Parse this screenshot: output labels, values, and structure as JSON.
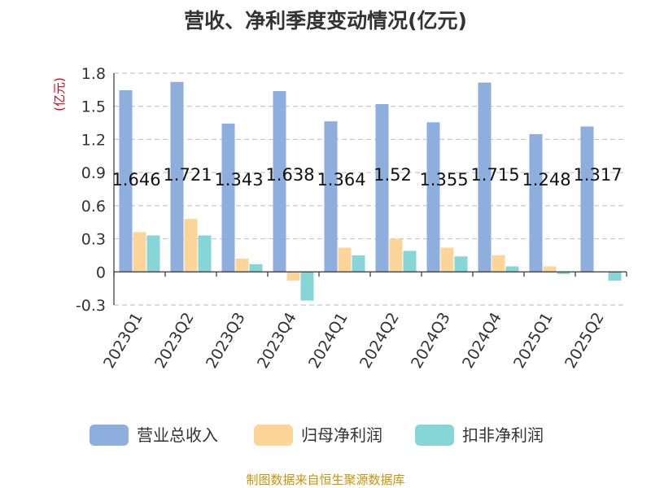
{
  "chart_data": {
    "type": "bar",
    "title": "营收、净利季度变动情况(亿元)",
    "ylabel": "(亿元)",
    "categories": [
      "2023Q1",
      "2023Q2",
      "2023Q3",
      "2023Q4",
      "2024Q1",
      "2024Q2",
      "2024Q3",
      "2024Q4",
      "2025Q1",
      "2025Q2"
    ],
    "series": [
      {
        "name": "营业总收入",
        "values": [
          1.646,
          1.721,
          1.343,
          1.638,
          1.364,
          1.52,
          1.355,
          1.715,
          1.248,
          1.317
        ]
      },
      {
        "name": "归母净利润",
        "values": [
          0.36,
          0.48,
          0.12,
          -0.08,
          0.22,
          0.3,
          0.22,
          0.15,
          0.05,
          0.0
        ]
      },
      {
        "name": "扣非净利润",
        "values": [
          0.33,
          0.33,
          0.07,
          -0.26,
          0.15,
          0.19,
          0.14,
          0.05,
          -0.02,
          -0.08
        ]
      }
    ],
    "data_labels": [
      "1.646",
      "1.721",
      "1.343",
      "1.638",
      "1.364",
      "1.52",
      "1.355",
      "1.715",
      "1.248",
      "1.317"
    ],
    "yticks": [
      "-0.3",
      "0",
      "0.3",
      "0.6",
      "0.9",
      "1.2",
      "1.5",
      "1.8"
    ],
    "ylim": [
      -0.3,
      1.8
    ],
    "grid": true,
    "legend_position": "bottom",
    "colors": [
      "#8eaede",
      "#fdd598",
      "#86d6d8"
    ]
  },
  "source": "制图数据来自恒生聚源数据库"
}
